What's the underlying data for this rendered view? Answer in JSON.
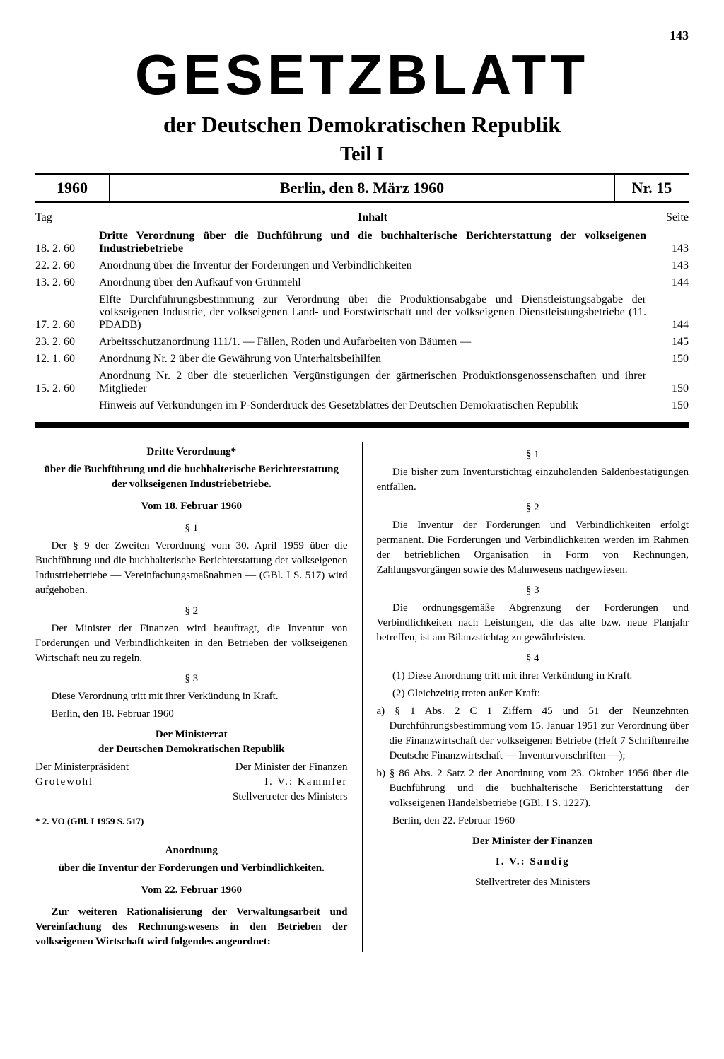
{
  "page_number": "143",
  "masthead": {
    "title": "GESETZBLATT",
    "subtitle": "der Deutschen Demokratischen Republik",
    "part": "Teil I"
  },
  "header": {
    "year": "1960",
    "date": "Berlin, den 8. März 1960",
    "nr": "Nr. 15"
  },
  "toc": {
    "col_day": "Tag",
    "col_content": "Inhalt",
    "col_page": "Seite",
    "rows": [
      {
        "date": "18. 2. 60",
        "title": "Dritte Verordnung über die Buchführung und die buchhalterische Berichterstattung der volkseigenen Industriebetriebe",
        "bold": true,
        "page": "143"
      },
      {
        "date": "22. 2. 60",
        "title": "Anordnung über die Inventur der Forderungen und Verbindlichkeiten",
        "bold": false,
        "page": "143"
      },
      {
        "date": "13. 2. 60",
        "title": "Anordnung über den Aufkauf von Grünmehl",
        "bold": false,
        "page": "144"
      },
      {
        "date": "17. 2. 60",
        "title": "Elfte Durchführungsbestimmung zur Verordnung über die Produktionsabgabe und Dienstleistungsabgabe der volkseigenen Industrie, der volkseigenen Land- und Forstwirtschaft und der volkseigenen Dienstleistungsbetriebe (11. PDADB)",
        "bold": false,
        "page": "144"
      },
      {
        "date": "23. 2. 60",
        "title": "Arbeitsschutzanordnung 111/1. — Fällen, Roden und Aufarbeiten von Bäumen —",
        "bold": false,
        "page": "145"
      },
      {
        "date": "12. 1. 60",
        "title": "Anordnung Nr. 2 über die Gewährung von Unterhaltsbeihilfen",
        "bold": false,
        "page": "150"
      },
      {
        "date": "15. 2. 60",
        "title": "Anordnung Nr. 2 über die steuerlichen Vergünstigungen der gärtnerischen Produktionsgenossenschaften und ihrer Mitglieder",
        "bold": false,
        "page": "150"
      },
      {
        "date": "",
        "title": "Hinweis auf Verkündungen im P-Sonderdruck des Gesetzblattes der Deutschen Demokratischen Republik",
        "bold": false,
        "page": "150"
      }
    ]
  },
  "left": {
    "title1": "Dritte Verordnung*",
    "title2": "über die Buchführung und die buchhalterische Berichterstattung der volkseigenen Industriebetriebe.",
    "date": "Vom 18. Februar 1960",
    "s1": "§ 1",
    "p1": "Der § 9 der Zweiten Verordnung vom 30. April 1959 über die Buchführung und die buchhalterische Berichterstattung der volkseigenen Industriebetriebe — Vereinfachungsmaßnahmen — (GBl. I S. 517) wird aufgehoben.",
    "s2": "§ 2",
    "p2": "Der Minister der Finanzen wird beauftragt, die Inventur von Forderungen und Verbindlichkeiten in den Betrieben der volkseigenen Wirtschaft neu zu regeln.",
    "s3": "§ 3",
    "p3": "Diese Verordnung tritt mit ihrer Verkündung in Kraft.",
    "place": "Berlin, den 18. Februar 1960",
    "council1": "Der Ministerrat",
    "council2": "der Deutschen Demokratischen Republik",
    "sig_l1": "Der Ministerpräsident",
    "sig_l2": "Grotewohl",
    "sig_r1": "Der Minister der Finanzen",
    "sig_r2": "I. V.: Kammler",
    "sig_r3": "Stellvertreter des Ministers",
    "footnote": "* 2. VO (GBl. I 1959 S. 517)",
    "title3": "Anordnung",
    "title4": "über die Inventur der Forderungen und Verbindlichkeiten.",
    "date2": "Vom 22. Februar 1960",
    "intro": "Zur weiteren Rationalisierung der Verwaltungsarbeit und Vereinfachung des Rechnungswesens in den Betrieben der volkseigenen Wirtschaft wird folgendes angeordnet:"
  },
  "right": {
    "s1": "§ 1",
    "p1": "Die bisher zum Inventurstichtag einzuholenden Saldenbestätigungen entfallen.",
    "s2": "§ 2",
    "p2": "Die Inventur der Forderungen und Verbindlichkeiten erfolgt permanent. Die Forderungen und Verbindlichkeiten werden im Rahmen der betrieblichen Organisation in Form von Rechnungen, Zahlungsvorgängen sowie des Mahnwesens nachgewiesen.",
    "s3": "§ 3",
    "p3": "Die ordnungsgemäße Abgrenzung der Forderungen und Verbindlichkeiten nach Leistungen, die das alte bzw. neue Planjahr betreffen, ist am Bilanzstichtag zu gewährleisten.",
    "s4": "§ 4",
    "p4a": "(1) Diese Anordnung tritt mit ihrer Verkündung in Kraft.",
    "p4b": "(2) Gleichzeitig treten außer Kraft:",
    "li_a": "a) § 1 Abs. 2 C 1 Ziffern 45 und 51 der Neunzehnten Durchführungsbestimmung vom 15. Januar 1951 zur Verordnung über die Finanzwirtschaft der volkseigenen Betriebe (Heft 7 Schriftenreihe Deutsche Finanzwirtschaft — Inventurvorschriften —);",
    "li_b": "b) § 86 Abs. 2 Satz 2 der Anordnung vom 23. Oktober 1956 über die Buchführung und die buchhalterische Berichterstattung der volkseigenen Handelsbetriebe (GBl. I S. 1227).",
    "place": "Berlin, den 22. Februar 1960",
    "sig1": "Der Minister der Finanzen",
    "sig2": "I. V.: Sandig",
    "sig3": "Stellvertreter des Ministers"
  }
}
